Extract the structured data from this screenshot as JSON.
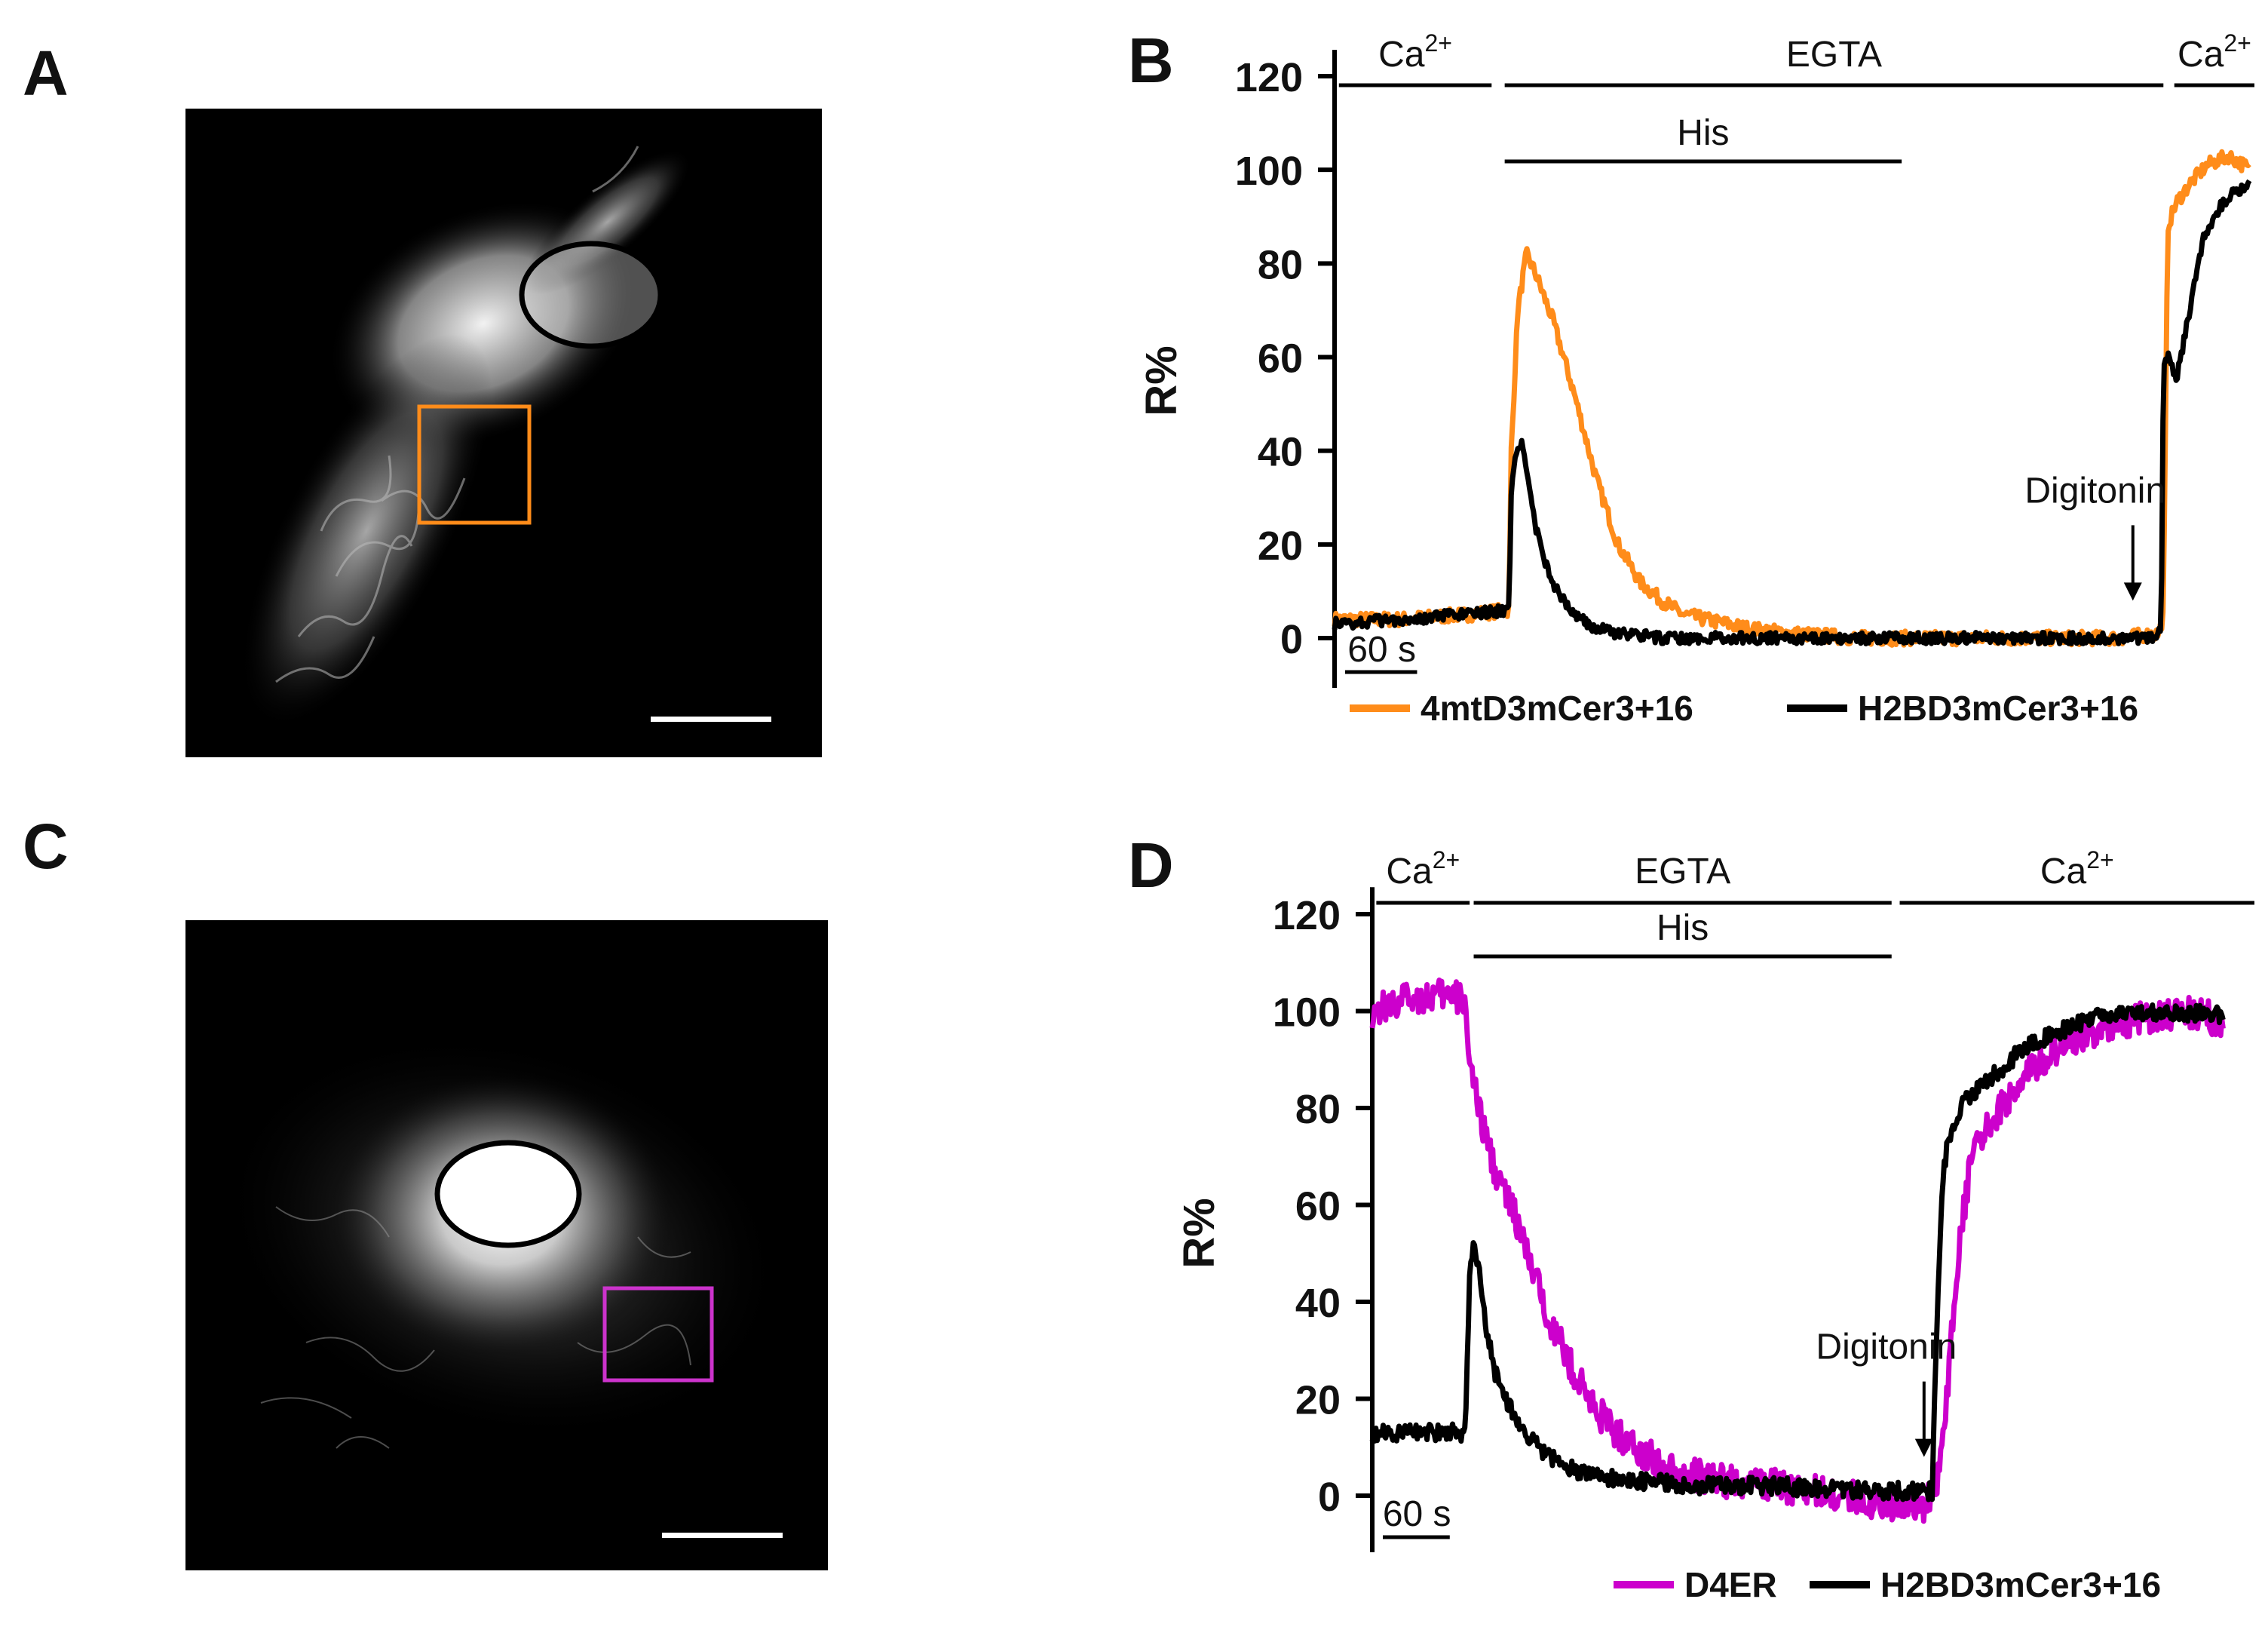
{
  "panel_labels": {
    "a": "A",
    "b": "B",
    "c": "C",
    "d": "D"
  },
  "images": {
    "a": {
      "roi_color": "#ff8c1a",
      "nucleus_color": "#000000",
      "scalebar_color": "#ffffff"
    },
    "c": {
      "roi_color": "#cc33cc",
      "nucleus_color": "#000000",
      "scalebar_color": "#ffffff"
    }
  },
  "chart_data": [
    {
      "id": "B",
      "type": "line",
      "title": "",
      "ylabel": "R%",
      "xlabel": "",
      "ylim": [
        -8,
        124
      ],
      "xlim": [
        0,
        420
      ],
      "yticks": [
        0,
        20,
        40,
        60,
        80,
        100,
        120
      ],
      "scale_bar_label": "60 s",
      "scale_bar_seconds": 60,
      "annotations": {
        "treatments": [
          {
            "label_base": "Ca",
            "label_sup": "2+",
            "start": 2,
            "end": 72
          },
          {
            "label_base": "EGTA",
            "label_sup": "",
            "start": 78,
            "end": 380
          },
          {
            "label_base": "Ca",
            "label_sup": "2+",
            "start": 385,
            "end": 450
          }
        ],
        "his": {
          "label": "His",
          "start": 78,
          "end": 260
        },
        "digitonin": {
          "label": "Digitonin",
          "x": 366,
          "y_tip": 8
        }
      },
      "legend": [
        {
          "name": "4mtD3mCer3+16",
          "color": "#ff8c1a"
        },
        {
          "name": "H2BD3mCer3+16",
          "color": "#000000"
        }
      ],
      "series": [
        {
          "name": "4mtD3mCer3+16",
          "color": "#ff8c1a",
          "noise": 1.5,
          "points": [
            [
              0,
              4
            ],
            [
              30,
              4
            ],
            [
              60,
              5
            ],
            [
              80,
              6
            ],
            [
              81,
              40
            ],
            [
              84,
              70
            ],
            [
              88,
              82
            ],
            [
              92,
              78
            ],
            [
              100,
              68
            ],
            [
              110,
              52
            ],
            [
              120,
              34
            ],
            [
              130,
              20
            ],
            [
              140,
              12
            ],
            [
              150,
              8
            ],
            [
              160,
              5
            ],
            [
              170,
              4
            ],
            [
              180,
              3
            ],
            [
              190,
              2
            ],
            [
              210,
              1
            ],
            [
              240,
              0
            ],
            [
              260,
              0
            ],
            [
              300,
              0
            ],
            [
              330,
              0
            ],
            [
              360,
              0
            ],
            [
              378,
              1
            ],
            [
              380,
              5
            ],
            [
              382,
              88
            ],
            [
              386,
              93
            ],
            [
              392,
              97
            ],
            [
              400,
              101
            ],
            [
              410,
              103
            ],
            [
              420,
              100
            ]
          ]
        },
        {
          "name": "H2BD3mCer3+16",
          "color": "#000000",
          "noise": 1.2,
          "points": [
            [
              0,
              3
            ],
            [
              30,
              4
            ],
            [
              60,
              5
            ],
            [
              80,
              6
            ],
            [
              81,
              30
            ],
            [
              83,
              40
            ],
            [
              86,
              42
            ],
            [
              89,
              33
            ],
            [
              92,
              24
            ],
            [
              96,
              17
            ],
            [
              102,
              10
            ],
            [
              110,
              5
            ],
            [
              120,
              2
            ],
            [
              130,
              1
            ],
            [
              150,
              0
            ],
            [
              200,
              0
            ],
            [
              260,
              0
            ],
            [
              300,
              0
            ],
            [
              340,
              0
            ],
            [
              376,
              0
            ],
            [
              379,
              2
            ],
            [
              380,
              58
            ],
            [
              382,
              60
            ],
            [
              386,
              55
            ],
            [
              392,
              70
            ],
            [
              398,
              85
            ],
            [
              404,
              91
            ],
            [
              412,
              95
            ],
            [
              420,
              97
            ]
          ]
        }
      ]
    },
    {
      "id": "D",
      "type": "line",
      "title": "",
      "ylabel": "R%",
      "xlabel": "",
      "ylim": [
        -8,
        124
      ],
      "xlim": [
        0,
        420
      ],
      "yticks": [
        0,
        20,
        40,
        60,
        80,
        100,
        120
      ],
      "scale_bar_label": "60 s",
      "scale_bar_seconds": 60,
      "annotations": {
        "treatments": [
          {
            "label_base": "Ca",
            "label_sup": "2+",
            "start": 2,
            "end": 48
          },
          {
            "label_base": "EGTA",
            "label_sup": "",
            "start": 50,
            "end": 256
          },
          {
            "label_base": "Ca",
            "label_sup": "2+",
            "start": 260,
            "end": 436
          }
        ],
        "his": {
          "label": "His",
          "start": 50,
          "end": 256
        },
        "digitonin": {
          "label": "Digitonin",
          "x": 272,
          "y_tip": 8
        }
      },
      "legend": [
        {
          "name": "D4ER",
          "color": "#cc00cc"
        },
        {
          "name": "H2BD3mCer3+16",
          "color": "#000000"
        }
      ],
      "series": [
        {
          "name": "D4ER",
          "color": "#cc00cc",
          "noise": 3.5,
          "points": [
            [
              0,
              100
            ],
            [
              20,
              103
            ],
            [
              40,
              103
            ],
            [
              46,
              102
            ],
            [
              48,
              90
            ],
            [
              52,
              80
            ],
            [
              60,
              68
            ],
            [
              70,
              58
            ],
            [
              80,
              45
            ],
            [
              90,
              34
            ],
            [
              100,
              25
            ],
            [
              110,
              18
            ],
            [
              120,
              13
            ],
            [
              130,
              10
            ],
            [
              140,
              7
            ],
            [
              150,
              5
            ],
            [
              170,
              3
            ],
            [
              200,
              2
            ],
            [
              230,
              0
            ],
            [
              260,
              -2
            ],
            [
              272,
              -2
            ],
            [
              276,
              0
            ],
            [
              280,
              6
            ],
            [
              285,
              30
            ],
            [
              290,
              55
            ],
            [
              295,
              68
            ],
            [
              300,
              74
            ],
            [
              310,
              80
            ],
            [
              320,
              86
            ],
            [
              335,
              92
            ],
            [
              350,
              95
            ],
            [
              370,
              98
            ],
            [
              400,
              100
            ],
            [
              420,
              98
            ]
          ]
        },
        {
          "name": "H2BD3mCer3+16",
          "color": "#000000",
          "noise": 1.8,
          "points": [
            [
              0,
              13
            ],
            [
              20,
              13
            ],
            [
              40,
              13
            ],
            [
              46,
              13
            ],
            [
              48,
              47
            ],
            [
              50,
              52
            ],
            [
              53,
              45
            ],
            [
              56,
              35
            ],
            [
              60,
              26
            ],
            [
              66,
              20
            ],
            [
              75,
              13
            ],
            [
              85,
              9
            ],
            [
              95,
              6
            ],
            [
              110,
              4
            ],
            [
              130,
              3
            ],
            [
              160,
              2
            ],
            [
              200,
              2
            ],
            [
              240,
              1
            ],
            [
              270,
              1
            ],
            [
              276,
              1
            ],
            [
              278,
              30
            ],
            [
              281,
              65
            ],
            [
              284,
              74
            ],
            [
              290,
              80
            ],
            [
              300,
              85
            ],
            [
              310,
              88
            ],
            [
              320,
              92
            ],
            [
              340,
              96
            ],
            [
              360,
              99
            ],
            [
              390,
              100
            ],
            [
              420,
              99
            ]
          ]
        }
      ]
    }
  ]
}
